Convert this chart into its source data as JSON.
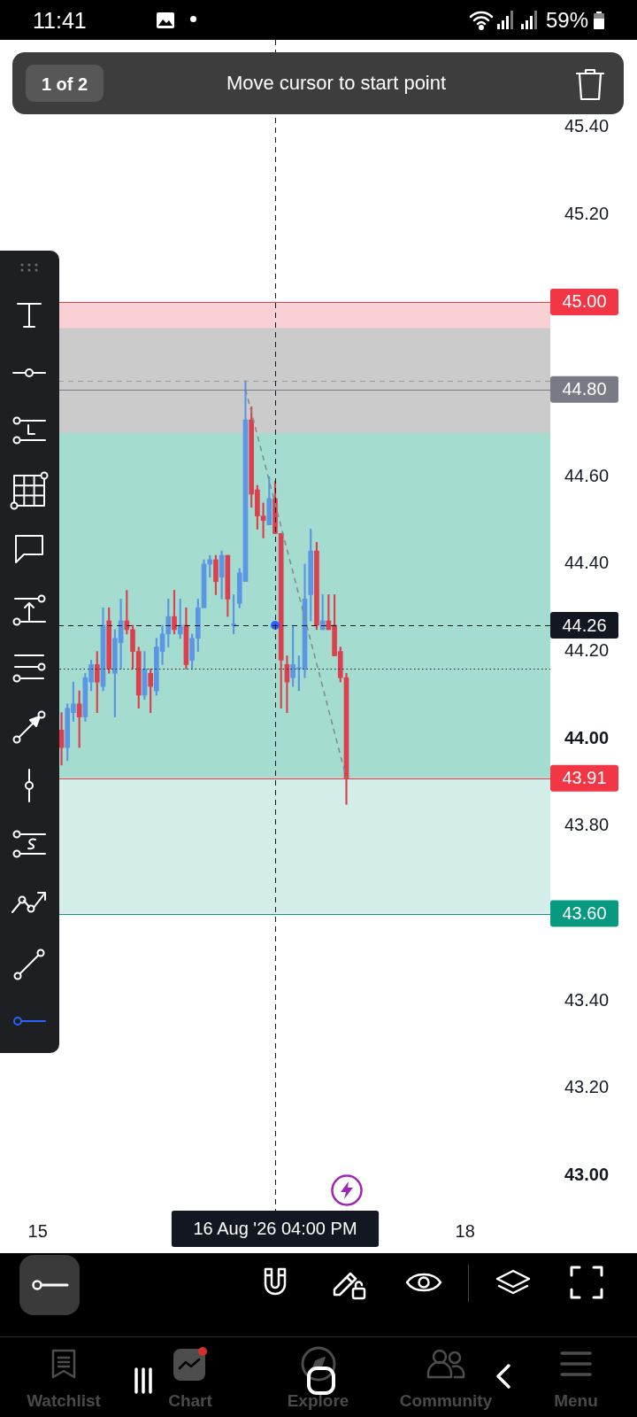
{
  "chart_data": {
    "type": "candlestick",
    "x": [
      "2026-08-15T04:00",
      "2026-08-15T05:00",
      "2026-08-15T06:00",
      "2026-08-15T07:00",
      "2026-08-15T08:00",
      "2026-08-15T09:00",
      "2026-08-15T10:00",
      "2026-08-15T11:00",
      "2026-08-15T12:00",
      "2026-08-15T13:00",
      "2026-08-15T14:00",
      "2026-08-15T15:00",
      "2026-08-15T16:00",
      "2026-08-15T17:00",
      "2026-08-15T18:00",
      "2026-08-15T19:00",
      "2026-08-15T20:00",
      "2026-08-15T21:00",
      "2026-08-15T22:00",
      "2026-08-15T23:00",
      "2026-08-16T00:00",
      "2026-08-16T01:00",
      "2026-08-16T02:00",
      "2026-08-16T03:00",
      "2026-08-16T04:00",
      "2026-08-16T05:00",
      "2026-08-16T06:00",
      "2026-08-16T07:00",
      "2026-08-16T08:00",
      "2026-08-16T09:00",
      "2026-08-16T10:00",
      "2026-08-16T11:00",
      "2026-08-16T12:00",
      "2026-08-16T13:00",
      "2026-08-16T14:00",
      "2026-08-16T15:00",
      "2026-08-16T16:00",
      "2026-08-16T17:00",
      "2026-08-16T18:00",
      "2026-08-16T19:00",
      "2026-08-16T20:00",
      "2026-08-16T21:00",
      "2026-08-16T22:00",
      "2026-08-16T23:00",
      "2026-08-17T00:00",
      "2026-08-17T01:00",
      "2026-08-17T02:00",
      "2026-08-17T03:00",
      "2026-08-17T04:00"
    ],
    "ohlc": [
      [
        44.02,
        44.06,
        43.94,
        43.98
      ],
      [
        43.98,
        44.08,
        43.95,
        44.07
      ],
      [
        44.06,
        44.13,
        44.04,
        44.08
      ],
      [
        44.08,
        44.11,
        43.98,
        44.05
      ],
      [
        44.05,
        44.15,
        44.04,
        44.14
      ],
      [
        44.13,
        44.18,
        44.11,
        44.17
      ],
      [
        44.17,
        44.2,
        44.06,
        44.13
      ],
      [
        44.12,
        44.3,
        44.11,
        44.26
      ],
      [
        44.27,
        44.3,
        44.15,
        44.16
      ],
      [
        44.15,
        44.25,
        44.05,
        44.23
      ],
      [
        44.22,
        44.32,
        44.16,
        44.27
      ],
      [
        44.27,
        44.34,
        44.24,
        44.25
      ],
      [
        44.25,
        44.26,
        44.16,
        44.2
      ],
      [
        44.2,
        44.21,
        44.07,
        44.1
      ],
      [
        44.1,
        44.2,
        44.09,
        44.16
      ],
      [
        44.15,
        44.16,
        44.06,
        44.12
      ],
      [
        44.11,
        44.23,
        44.1,
        44.21
      ],
      [
        44.2,
        44.26,
        44.17,
        44.24
      ],
      [
        44.24,
        44.32,
        44.21,
        44.28
      ],
      [
        44.28,
        44.34,
        44.24,
        44.25
      ],
      [
        44.24,
        44.32,
        44.23,
        44.26
      ],
      [
        44.26,
        44.3,
        44.16,
        44.17
      ],
      [
        44.18,
        44.24,
        44.16,
        44.23
      ],
      [
        44.23,
        44.32,
        44.2,
        44.3
      ],
      [
        44.3,
        44.41,
        44.3,
        44.4
      ],
      [
        44.4,
        44.42,
        44.37,
        44.41
      ],
      [
        44.41,
        44.42,
        44.33,
        44.36
      ],
      [
        44.37,
        44.43,
        44.32,
        44.42
      ],
      [
        44.42,
        44.42,
        44.28,
        44.32
      ],
      [
        44.26,
        44.33,
        44.24,
        44.26
      ],
      [
        44.31,
        44.39,
        44.3,
        44.38
      ],
      [
        44.36,
        44.82,
        44.36,
        44.73
      ],
      [
        44.73,
        44.76,
        44.53,
        44.56
      ],
      [
        44.57,
        44.58,
        44.48,
        44.51
      ],
      [
        44.51,
        44.54,
        44.46,
        44.5
      ],
      [
        44.49,
        44.6,
        44.49,
        44.55
      ],
      [
        44.55,
        44.59,
        44.47,
        44.47
      ],
      [
        44.47,
        44.47,
        44.07,
        44.18
      ],
      [
        44.17,
        44.19,
        44.06,
        44.13
      ],
      [
        44.14,
        44.26,
        44.12,
        44.17
      ],
      [
        44.16,
        44.19,
        44.11,
        44.16
      ],
      [
        44.16,
        44.4,
        44.14,
        44.32
      ],
      [
        44.33,
        44.48,
        44.27,
        44.43
      ],
      [
        44.43,
        44.45,
        44.25,
        44.26
      ],
      [
        44.25,
        44.33,
        44.25,
        44.27
      ],
      [
        44.27,
        44.33,
        44.25,
        44.25
      ],
      [
        44.26,
        44.33,
        44.19,
        44.19
      ],
      [
        44.2,
        44.21,
        44.13,
        44.14
      ],
      [
        44.14,
        44.15,
        43.85,
        43.91
      ]
    ],
    "colors": [
      "#dc3f4d",
      "#5b96e3",
      "#5b96e3",
      "#dc3f4d",
      "#5b96e3",
      "#5b96e3",
      "#dc3f4d",
      "#5b96e3",
      "#dc3f4d",
      "#5b96e3",
      "#5b96e3",
      "#dc3f4d",
      "#dc3f4d",
      "#dc3f4d",
      "#5b96e3",
      "#dc3f4d",
      "#5b96e3",
      "#5b96e3",
      "#5b96e3",
      "#dc3f4d",
      "#5b96e3",
      "#dc3f4d",
      "#5b96e3",
      "#5b96e3",
      "#5b96e3",
      "#5b96e3",
      "#dc3f4d",
      "#5b96e3",
      "#dc3f4d",
      "#5b96e3",
      "#5b96e3",
      "#5b96e3",
      "#dc3f4d",
      "#dc3f4d",
      "#dc3f4d",
      "#5b96e3",
      "#dc3f4d",
      "#dc3f4d",
      "#dc3f4d",
      "#5b96e3",
      "#5b96e3",
      "#5b96e3",
      "#5b96e3",
      "#dc3f4d",
      "#5b96e3",
      "#dc3f4d",
      "#dc3f4d",
      "#dc3f4d",
      "#dc3f4d"
    ],
    "series": [
      {
        "type": "line",
        "x": [
          "2026-08-16T11:00",
          "2026-08-17T04:00"
        ],
        "values": [
          44.8,
          43.91
        ],
        "color": "#7d8b88",
        "line_style": "dashed",
        "marker": "none"
      },
      {
        "type": "scatter",
        "x": [
          "2026-08-16T16:00"
        ],
        "values": [
          44.26
        ],
        "color": "#2962ff",
        "marker": "circle"
      }
    ],
    "xlim": [
      "2026-08-14T17:38",
      "2026-08-18T14:22"
    ],
    "xticks": [
      {
        "value": "2026-08-15",
        "label": "15"
      },
      {
        "value": "2026-08-18",
        "label": "18"
      }
    ],
    "ylim": [
      42.92,
      45.6
    ],
    "yticks": [
      {
        "value": 43,
        "label": "43.00"
      },
      {
        "value": 43.2,
        "label": "43.20"
      },
      {
        "value": 43.4,
        "label": "43.40"
      },
      {
        "value": 43.8,
        "label": "43.80"
      },
      {
        "value": 44,
        "label": "44.00"
      },
      {
        "value": 44.2,
        "label": "44.20"
      },
      {
        "value": 44.4,
        "label": "44.40"
      },
      {
        "value": 44.6,
        "label": "44.60"
      },
      {
        "value": 45.2,
        "label": "45.20"
      },
      {
        "value": 45.4,
        "label": "45.40"
      }
    ],
    "bands": [
      {
        "axis": "y",
        "from": 44.8,
        "to": 45.0,
        "color": "#f9d1d5"
      },
      {
        "axis": "y",
        "from": 43.6,
        "to": 44.8,
        "color": "#d3eee8"
      },
      {
        "axis": "y",
        "from": 43.91,
        "to": 44.8,
        "color": "#a4dcd0"
      },
      {
        "axis": "y",
        "from": 44.7,
        "to": 44.94,
        "color": "#cbcbcb"
      }
    ],
    "ref_lines": [
      {
        "axis": "y",
        "value": 45.0,
        "label": "45.00",
        "color": "#f23645"
      },
      {
        "axis": "y",
        "value": 44.82,
        "color": "#9a9a9a",
        "line_style": "dashed"
      },
      {
        "axis": "y",
        "value": 44.8,
        "label": "44.80",
        "color": "#787b86"
      },
      {
        "axis": "y",
        "value": 44.26,
        "label": "44.26",
        "color": "#131722",
        "line_style": "dashed"
      },
      {
        "axis": "y",
        "value": 44.16,
        "color": "#131722",
        "line_style": "dotted"
      },
      {
        "axis": "y",
        "value": 43.91,
        "label": "43.91",
        "color": "#f23645"
      },
      {
        "axis": "y",
        "value": 43.6,
        "label": "43.60",
        "color": "#089981"
      },
      {
        "axis": "x",
        "value": "2026-08-16T16:00",
        "label": "16 Aug '26 04:00 PM",
        "color": "#131722",
        "line_style": "dashed"
      }
    ],
    "annotations": [
      "11:41",
      "59%",
      "1 of 2",
      "Move cursor to start point",
      "Watchlist",
      "Chart",
      "Explore",
      "Community",
      "Menu"
    ]
  }
}
